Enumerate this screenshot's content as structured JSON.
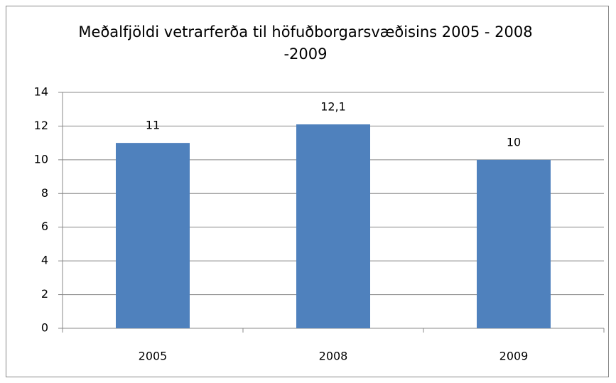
{
  "chart_data": {
    "type": "bar",
    "title": "Meðalfjöldi vetrarferða til höfuðborgarsvæðisins 2005 - 2008 -2009",
    "categories": [
      "2005",
      "2008",
      "2009"
    ],
    "values": [
      11,
      12.1,
      10
    ],
    "value_labels": [
      "11",
      "12,1",
      "10"
    ],
    "color": "#4f81bd",
    "ylim": [
      0,
      14
    ],
    "yticks": [
      0,
      2,
      4,
      6,
      8,
      10,
      12,
      14
    ],
    "grid": true
  }
}
